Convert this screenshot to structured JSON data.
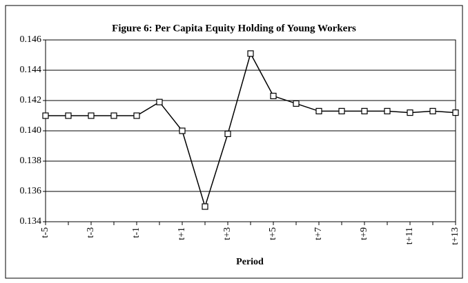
{
  "chart_data": {
    "type": "line",
    "title": "Figure 6: Per Capita Equity Holding of Young Workers",
    "x_label": "Period",
    "categories": [
      "t-5",
      null,
      "t-3",
      null,
      "t-1",
      null,
      "t+1",
      null,
      "t+3",
      null,
      "t+5",
      null,
      "t+7",
      null,
      "t+9",
      null,
      "t+11",
      null,
      "t+13"
    ],
    "series": [
      {
        "name": "Per Capita Equity Holding",
        "color": "#000000",
        "values": [
          0.141,
          0.141,
          0.141,
          0.141,
          0.141,
          0.1419,
          0.14,
          0.135,
          0.1398,
          0.1451,
          0.1423,
          0.1418,
          0.1413,
          0.1413,
          0.1413,
          0.1413,
          0.1412,
          0.1413,
          0.1412
        ]
      }
    ],
    "ylim": [
      0.134,
      0.146
    ],
    "yticks": [
      0.134,
      0.136,
      0.138,
      {
        "value": 0.14,
        "label": "0.140"
      },
      0.142,
      0.144,
      0.146
    ],
    "grid": true,
    "legend": false
  }
}
